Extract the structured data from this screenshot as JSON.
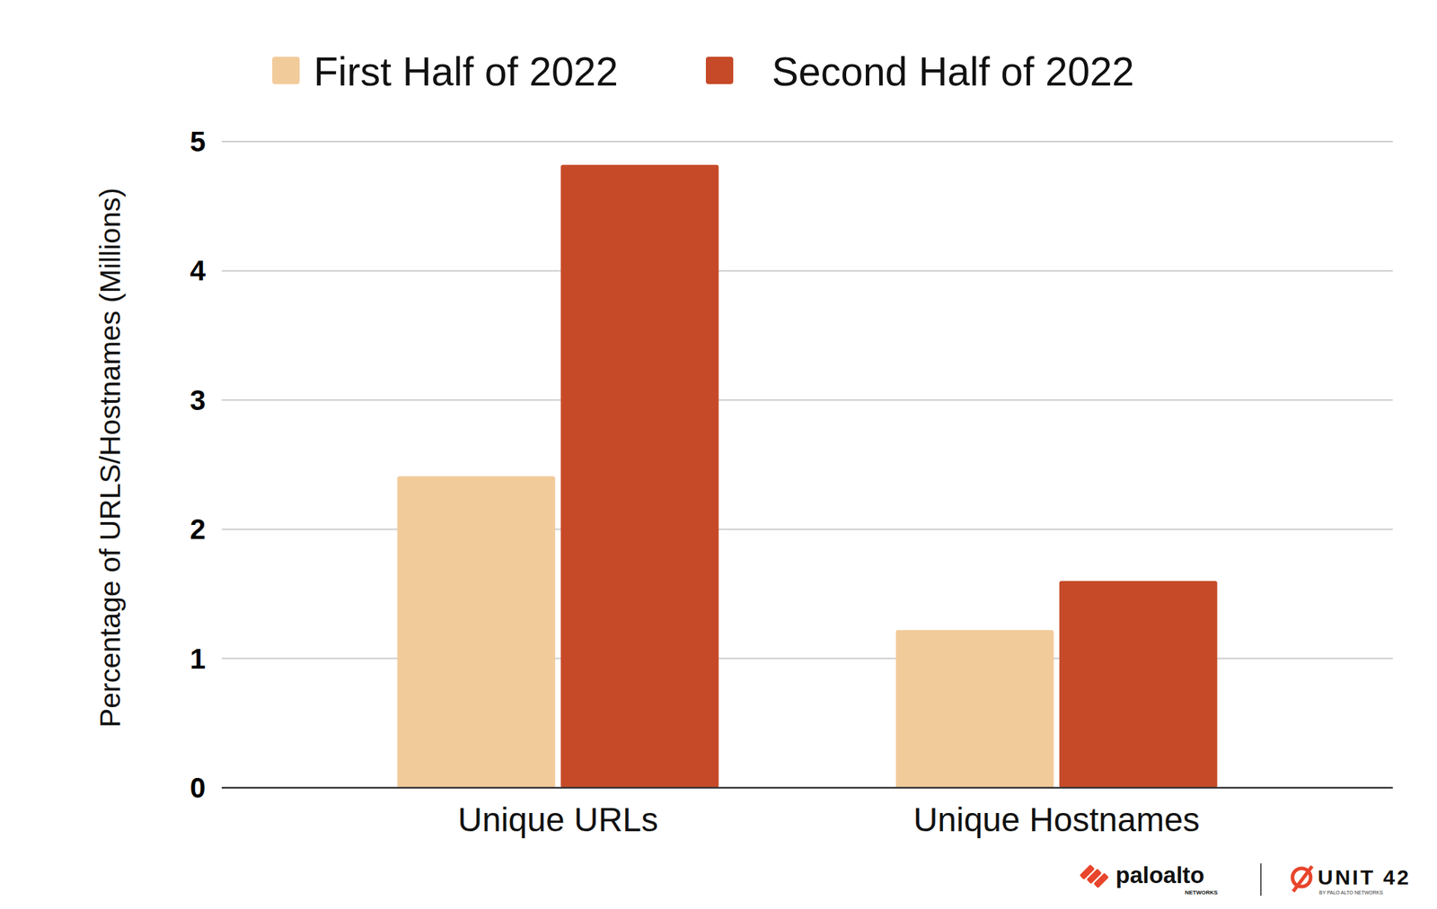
{
  "chart_data": {
    "type": "bar",
    "y_label": "Percentage of URLS/Hostnames (Millions)",
    "categories": [
      "Unique URLs",
      "Unique Hostnames"
    ],
    "series": [
      {
        "name": "First Half of 2022",
        "color": "#f2cb9b",
        "values": [
          2.41,
          1.22
        ]
      },
      {
        "name": "Second Half of 2022",
        "color": "#c64a28",
        "values": [
          4.82,
          1.6
        ]
      }
    ],
    "ylim": [
      0,
      5
    ],
    "yticks": [
      0,
      1,
      2,
      3,
      4,
      5
    ],
    "grid": true,
    "legend": "top",
    "annotations": [
      "paloalto",
      "NETWORKS",
      "UNIT 42",
      "BY PALO ALTO NETWORKS"
    ]
  }
}
